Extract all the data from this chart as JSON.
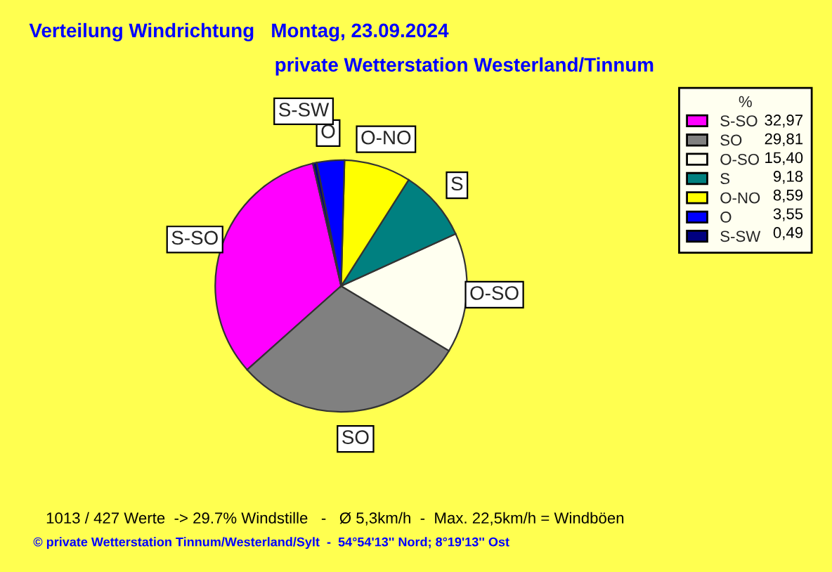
{
  "chart_data": {
    "type": "pie",
    "title": "Verteilung Windrichtung   Montag, 23.09.2024",
    "subtitle": "private Wetterstation Westerland/Tinnum",
    "legend_title": "%",
    "categories": [
      "S-SO",
      "SO",
      "O-SO",
      "S",
      "O-NO",
      "O",
      "S-SW"
    ],
    "values": [
      32.97,
      29.81,
      15.4,
      9.18,
      8.59,
      3.55,
      0.49
    ],
    "value_labels": [
      "32,97",
      "29,81",
      "15,40",
      "9,18",
      "8,59",
      "3,55",
      "0,49"
    ],
    "colors": [
      "#ff00ff",
      "#808080",
      "#fffff0",
      "#008080",
      "#ffff00",
      "#0000ff",
      "#000080"
    ],
    "legend": "top right",
    "annotations": [
      "1013 / 427 Werte  -> 29.7% Windstille   -   Ø 5,3km/h  -  Max. 22,5km/h = Windböen",
      "© private Wetterstation Tinnum/Westerland/Sylt  -  54°54'13'' Nord; 8°19'13'' Ost"
    ]
  }
}
